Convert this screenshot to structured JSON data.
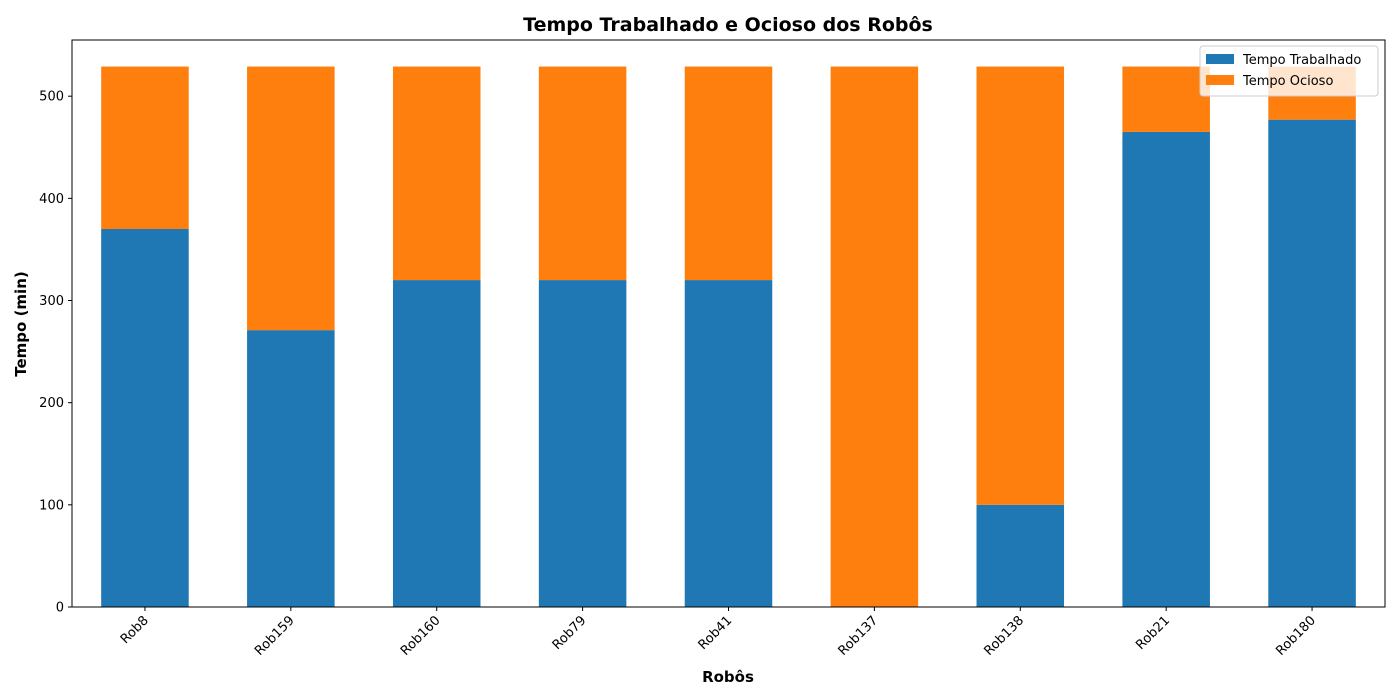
{
  "chart_data": {
    "type": "bar",
    "stacked": true,
    "title": "Tempo Trabalhado e Ocioso dos Robôs",
    "xlabel": "Robôs",
    "ylabel": "Tempo (min)",
    "categories": [
      "Rob8",
      "Rob159",
      "Rob160",
      "Rob79",
      "Rob41",
      "Rob137",
      "Rob138",
      "Rob21",
      "Rob180"
    ],
    "series": [
      {
        "name": "Tempo Trabalhado",
        "color": "#1f77b4",
        "values": [
          370,
          271,
          320,
          320,
          320,
          0,
          100,
          465,
          477
        ]
      },
      {
        "name": "Tempo Ocioso",
        "color": "#ff7f0e",
        "values": [
          159,
          258,
          209,
          209,
          209,
          529,
          429,
          64,
          52
        ]
      }
    ],
    "ylim": [
      0,
      555
    ],
    "yticks": [
      0,
      100,
      200,
      300,
      400,
      500
    ],
    "grid": false,
    "legend_position": "top-right"
  }
}
